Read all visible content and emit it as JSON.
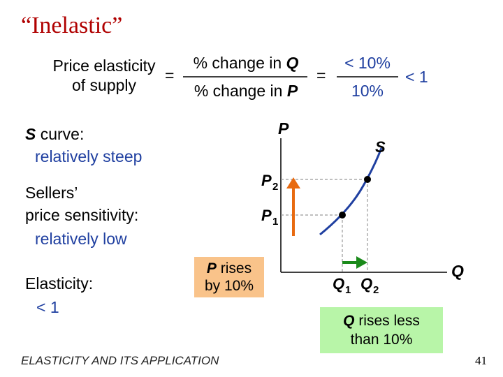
{
  "title": "“Inelastic”",
  "formula": {
    "lhs_line1": "Price elasticity",
    "lhs_line2": "of supply",
    "equals": "=",
    "num_prefix": "% change in ",
    "num_var": "Q",
    "den_prefix": "% change in ",
    "den_var": "P",
    "equals2": "=",
    "num2": "< 10%",
    "den2": "10%",
    "result": "< 1"
  },
  "s_curve": {
    "var": "S",
    "text": " curve:",
    "desc": "relatively steep"
  },
  "sensitivity": {
    "line1": "Sellers’",
    "line2": "price sensitivity:",
    "desc": "relatively low"
  },
  "elasticity": {
    "label": "Elasticity:",
    "value": "< 1"
  },
  "price_box": {
    "var": "P",
    "line1_rest": " rises",
    "line2": "by 10%"
  },
  "quantity_box": {
    "var": "Q",
    "line1_rest": " rises less",
    "line2": "than 10%"
  },
  "graph": {
    "y_axis_label": "P",
    "x_axis_label": "Q",
    "curve_label": "S",
    "p1": "P",
    "p1_sub": "1",
    "p2": "P",
    "p2_sub": "2",
    "q1": "Q",
    "q1_sub": "1",
    "q2": "Q",
    "q2_sub": "2",
    "colors": {
      "curve": "#1f3fa0",
      "price_arrow": "#e86a10",
      "quantity_arrow": "#1a8a1a"
    }
  },
  "footer": "ELASTICITY AND ITS APPLICATION",
  "page_number": "41"
}
